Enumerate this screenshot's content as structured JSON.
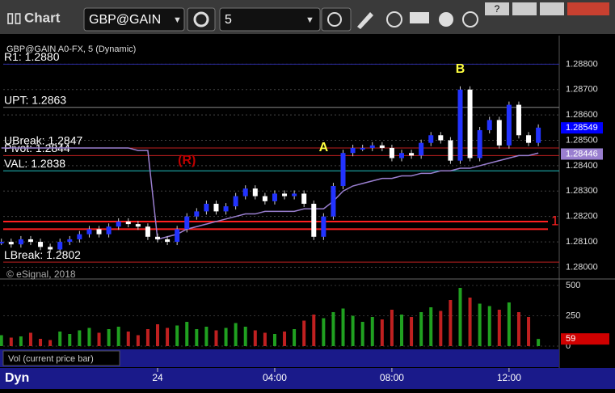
{
  "window": {
    "title": "Chart",
    "symbol": "GBP@GAIN",
    "interval": "5",
    "help": "?"
  },
  "chart_data": {
    "type": "candlestick",
    "title": "GBP@GAIN A0-FX, 5 (Dynamic)",
    "categories": [
      null,
      null,
      null,
      null,
      null,
      null,
      null,
      null,
      null,
      null,
      null,
      null,
      null,
      null,
      null,
      null,
      "24",
      null,
      null,
      null,
      null,
      null,
      null,
      null,
      null,
      null,
      null,
      null,
      "04:00",
      null,
      null,
      null,
      null,
      null,
      null,
      null,
      null,
      null,
      null,
      null,
      "08:00",
      null,
      null,
      null,
      null,
      null,
      null,
      null,
      null,
      null,
      null,
      null,
      "12:00",
      null,
      null,
      null
    ],
    "close": [
      1.281,
      1.2809,
      1.2811,
      1.281,
      1.2808,
      1.2807,
      1.281,
      1.2811,
      1.2813,
      1.2815,
      1.2813,
      1.2816,
      1.2818,
      1.2817,
      1.2816,
      1.2812,
      1.2811,
      1.281,
      1.2815,
      1.282,
      1.2822,
      1.2825,
      1.2822,
      1.2824,
      1.2828,
      1.2831,
      1.2828,
      1.2826,
      1.2829,
      1.2828,
      1.2829,
      1.2825,
      1.2812,
      1.282,
      1.2832,
      1.2845,
      1.2847,
      1.2847,
      1.2848,
      1.2847,
      1.2843,
      1.2845,
      1.2844,
      1.2849,
      1.2852,
      1.285,
      1.2842,
      1.287,
      1.2843,
      1.2854,
      1.2858,
      1.2848,
      1.2864,
      1.2852,
      1.2849,
      1.2855
    ],
    "overlay": {
      "color": "#9a7fd0",
      "values": [
        1.2847,
        1.2847,
        1.2847,
        1.2847,
        1.2847,
        1.2847,
        1.2847,
        1.2847,
        1.2847,
        1.2847,
        1.2847,
        1.2847,
        1.2847,
        1.2847,
        1.2846,
        1.2846,
        1.2811,
        1.2812,
        1.2813,
        1.2815,
        1.2816,
        1.2817,
        1.2818,
        1.2819,
        1.282,
        1.2821,
        1.2821,
        1.2822,
        1.2822,
        1.2822,
        1.2822,
        1.2823,
        1.2823,
        1.2823,
        1.2826,
        1.283,
        1.2832,
        1.2833,
        1.2834,
        1.2835,
        1.2835,
        1.2836,
        1.2836,
        1.2837,
        1.2837,
        1.2838,
        1.2838,
        1.2839,
        1.2839,
        1.284,
        1.2841,
        1.2842,
        1.2843,
        1.2844,
        1.2844,
        1.2845
      ]
    },
    "ylim": [
      1.2796,
      1.289
    ],
    "yticks": [
      {
        "value": 1.28,
        "label": "1.28000"
      },
      {
        "value": 1.281,
        "label": "1.28100"
      },
      {
        "value": 1.282,
        "label": "1.28200"
      },
      {
        "value": 1.283,
        "label": "1.28300"
      },
      {
        "value": 1.284,
        "label": "1.28400"
      },
      {
        "value": 1.285,
        "label": "1.28500"
      },
      {
        "value": 1.286,
        "label": "1.28600"
      },
      {
        "value": 1.287,
        "label": "1.28700"
      },
      {
        "value": 1.288,
        "label": "1.28800"
      }
    ],
    "price_tags": [
      {
        "value": 1.28549,
        "label": "1.28549",
        "color": "#0000ff"
      },
      {
        "value": 1.28446,
        "label": "1.28446",
        "color": "#9a7fd0"
      }
    ],
    "levels": [
      {
        "label": "R1: 1.2880",
        "value": 1.288,
        "color": "#2a2aa0"
      },
      {
        "label": "UPT: 1.2863",
        "value": 1.2863,
        "color": "#888888"
      },
      {
        "label": "UBreak: 1.2847",
        "value": 1.2847,
        "color": "#c02020"
      },
      {
        "label": "Pivot: 1.2844",
        "value": 1.2844,
        "color": "#c02020"
      },
      {
        "label": "VAL: 1.2838",
        "value": 1.2838,
        "color": "#20c0c0"
      },
      {
        "label": "LBreak: 1.2802",
        "value": 1.2802,
        "color": "#c02020"
      }
    ],
    "zone": {
      "label": "1",
      "values": [
        1.2818,
        1.2815
      ],
      "color": "#ff2020"
    },
    "annotations": [
      {
        "text": "A",
        "index": 33,
        "value": 1.2847,
        "color": "#ffff40"
      },
      {
        "text": "B",
        "index": 47,
        "value": 1.2878,
        "color": "#ffff40"
      },
      {
        "text": "(R)",
        "index": 19,
        "value": 1.2842,
        "color": "#c00000"
      }
    ],
    "volume": {
      "title": "Vol (current price bar)",
      "values": [
        90,
        70,
        80,
        110,
        60,
        50,
        120,
        100,
        130,
        150,
        110,
        140,
        160,
        120,
        90,
        140,
        180,
        150,
        170,
        200,
        140,
        160,
        130,
        150,
        190,
        160,
        130,
        110,
        100,
        120,
        140,
        210,
        260,
        230,
        280,
        310,
        250,
        200,
        240,
        220,
        300,
        260,
        240,
        280,
        320,
        290,
        380,
        480,
        400,
        350,
        330,
        300,
        360,
        280,
        240,
        59
      ],
      "value_labels": {
        "55": "59"
      },
      "ylim": [
        0,
        520
      ],
      "yticks": [
        0,
        250,
        500
      ]
    },
    "copyright": "© eSignal, 2018",
    "mode": "Dyn"
  }
}
